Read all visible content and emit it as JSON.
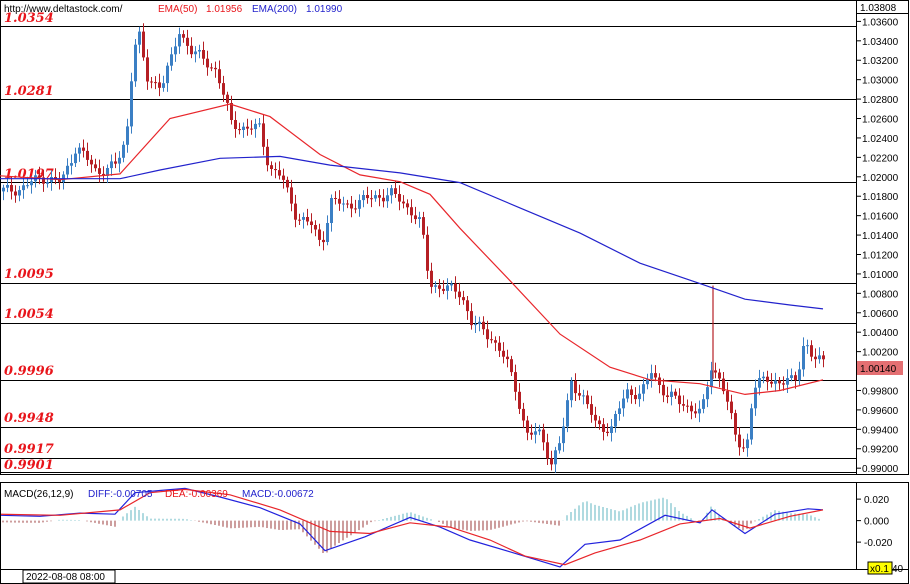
{
  "header": {
    "source": "http://www.deltastock.com/",
    "ema50_label": "EMA(50)",
    "ema50_value": "1.01956",
    "ema200_label": "EMA(200)",
    "ema200_value": "1.01990",
    "top_price": "1.03808"
  },
  "macd_header": {
    "params": "MACD(26,12,9)",
    "diff": "DIFF:-0.00705",
    "dea": "DEA:-0.00369",
    "macd": "MACD:-0.00672"
  },
  "current_price": "1.00140",
  "date_label": "2022-08-08 08:00",
  "zoom_label": "x0.1",
  "macd_tick_fragment": "40",
  "colors": {
    "bull": "#3b7fc4",
    "bear": "#b51f24",
    "ema50": "#e8262b",
    "ema200": "#2222cc",
    "level_text": "#e8151b",
    "price_box": "#e46f72"
  },
  "chart_data": {
    "type": "candlestick",
    "price_axis": {
      "ylim": [
        0.9894,
        1.0381
      ],
      "ticks": [
        "1.03600",
        "1.03400",
        "1.03200",
        "1.03000",
        "1.02800",
        "1.02600",
        "1.02400",
        "1.02200",
        "1.02000",
        "1.01800",
        "1.01600",
        "1.01400",
        "1.01200",
        "1.01000",
        "1.00800",
        "1.00600",
        "1.00400",
        "1.00200",
        "1.00000",
        "0.99800",
        "0.99600",
        "0.99400",
        "0.99200",
        "0.99000"
      ]
    },
    "levels": [
      "1.0354",
      "1.0281",
      "1.0197",
      "1.0095",
      "1.0054",
      "0.9996",
      "0.9948",
      "0.9917",
      "0.9901"
    ],
    "ema50": [
      [
        0,
        1.0201
      ],
      [
        60,
        1.0197
      ],
      [
        120,
        1.0203
      ],
      [
        170,
        1.026
      ],
      [
        230,
        1.0275
      ],
      [
        270,
        1.0262
      ],
      [
        320,
        1.0223
      ],
      [
        360,
        1.0202
      ],
      [
        400,
        1.0195
      ],
      [
        430,
        1.0182
      ],
      [
        460,
        1.0147
      ],
      [
        510,
        1.0093
      ],
      [
        560,
        1.0038
      ],
      [
        610,
        1.0004
      ],
      [
        650,
        0.9991
      ],
      [
        700,
        0.9987
      ],
      [
        745,
        0.9976
      ],
      [
        780,
        0.998
      ],
      [
        823,
        0.9991
      ]
    ],
    "ema200": [
      [
        0,
        1.0198
      ],
      [
        120,
        1.0198
      ],
      [
        160,
        1.0207
      ],
      [
        220,
        1.0219
      ],
      [
        280,
        1.0221
      ],
      [
        330,
        1.0212
      ],
      [
        400,
        1.0204
      ],
      [
        460,
        1.0194
      ],
      [
        520,
        1.0168
      ],
      [
        580,
        1.0142
      ],
      [
        640,
        1.0111
      ],
      [
        700,
        1.009
      ],
      [
        745,
        1.0074
      ],
      [
        790,
        1.0068
      ],
      [
        823,
        1.0064
      ]
    ],
    "macd_axis": {
      "ylim": [
        -0.045,
        0.035
      ],
      "ticks": [
        "0.020",
        "0.000",
        "-0.020"
      ]
    },
    "diff_line": [
      [
        0,
        0.005
      ],
      [
        40,
        0.004
      ],
      [
        80,
        0.007
      ],
      [
        115,
        0.006
      ],
      [
        135,
        0.026
      ],
      [
        160,
        0.028
      ],
      [
        185,
        0.03
      ],
      [
        220,
        0.022
      ],
      [
        260,
        0.012
      ],
      [
        300,
        -0.003
      ],
      [
        325,
        -0.028
      ],
      [
        365,
        -0.015
      ],
      [
        410,
        0.003
      ],
      [
        440,
        -0.006
      ],
      [
        470,
        -0.018
      ],
      [
        510,
        -0.029
      ],
      [
        560,
        -0.043
      ],
      [
        585,
        -0.022
      ],
      [
        620,
        -0.018
      ],
      [
        665,
        0.005
      ],
      [
        700,
        -0.002
      ],
      [
        712,
        0.01
      ],
      [
        745,
        -0.012
      ],
      [
        775,
        0.006
      ],
      [
        808,
        0.011
      ],
      [
        823,
        0.01
      ]
    ],
    "dea_line": [
      [
        0,
        0.006
      ],
      [
        60,
        0.005
      ],
      [
        120,
        0.01
      ],
      [
        150,
        0.026
      ],
      [
        185,
        0.029
      ],
      [
        230,
        0.024
      ],
      [
        280,
        0.01
      ],
      [
        330,
        -0.01
      ],
      [
        370,
        -0.012
      ],
      [
        410,
        -0.002
      ],
      [
        450,
        -0.006
      ],
      [
        490,
        -0.018
      ],
      [
        525,
        -0.033
      ],
      [
        565,
        -0.041
      ],
      [
        595,
        -0.03
      ],
      [
        640,
        -0.018
      ],
      [
        680,
        -0.003
      ],
      [
        720,
        0.002
      ],
      [
        750,
        -0.007
      ],
      [
        790,
        0.004
      ],
      [
        823,
        0.01
      ]
    ]
  }
}
